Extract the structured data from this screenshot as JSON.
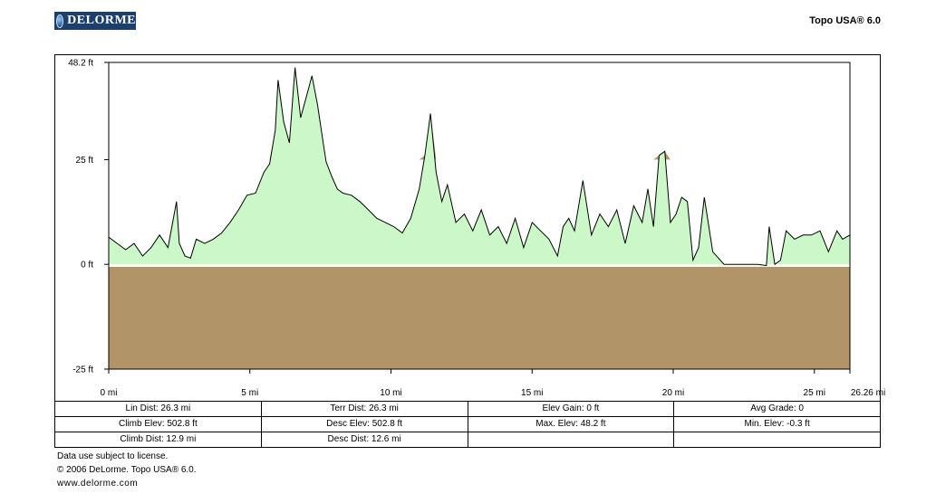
{
  "header": {
    "logo_text": "DELORME",
    "app_title": "Topo USA® 6.0"
  },
  "chart_data": {
    "type": "area",
    "title": "",
    "xlabel": "",
    "ylabel": "",
    "x_unit": "mi",
    "y_unit": "ft",
    "xlim": [
      0,
      26.26
    ],
    "ylim": [
      -25,
      48.2
    ],
    "x_ticks": [
      0,
      5,
      10,
      15,
      20,
      25,
      26.26
    ],
    "x_tick_labels": [
      "0 mi",
      "5 mi",
      "10 mi",
      "15 mi",
      "20 mi",
      "25 mi",
      "26.26 mi"
    ],
    "y_ticks": [
      48.2,
      25,
      0,
      -25
    ],
    "y_tick_labels": [
      "48.2 ft",
      "25 ft",
      "0 ft",
      "-25 ft"
    ],
    "grid": false,
    "legend": "none",
    "colors": {
      "fill": "#ccf7c9",
      "ground": "#b19467",
      "line": "#000000"
    },
    "series": [
      {
        "x": [
          0,
          0.3,
          0.6,
          0.9,
          1.2,
          1.5,
          1.8,
          2.1,
          2.4,
          2.5,
          2.7,
          2.9,
          3.1,
          3.4,
          3.7,
          4.0,
          4.3,
          4.6,
          4.9,
          5.2,
          5.5,
          5.7,
          5.9,
          6.0,
          6.2,
          6.4,
          6.6,
          6.8,
          7.0,
          7.2,
          7.4,
          7.6,
          7.7,
          7.9,
          8.1,
          8.3,
          8.6,
          8.9,
          9.2,
          9.5,
          9.8,
          10.1,
          10.4,
          10.7,
          11.0,
          11.2,
          11.4,
          11.6,
          11.8,
          12.0,
          12.3,
          12.6,
          12.9,
          13.2,
          13.5,
          13.8,
          14.1,
          14.4,
          14.7,
          15.0,
          15.3,
          15.6,
          15.9,
          16.1,
          16.3,
          16.5,
          16.8,
          17.1,
          17.4,
          17.7,
          18.0,
          18.3,
          18.6,
          18.9,
          19.1,
          19.3,
          19.5,
          19.7,
          19.9,
          20.1,
          20.3,
          20.5,
          20.7,
          20.9,
          21.1,
          21.4,
          21.8,
          22.2,
          22.6,
          23.0,
          23.3,
          23.4,
          23.6,
          23.8,
          24.0,
          24.3,
          24.6,
          24.9,
          25.2,
          25.5,
          25.8,
          26.0,
          26.26
        ],
        "y": [
          6.5,
          5.0,
          3.5,
          5.0,
          2.0,
          4.0,
          7.0,
          4.0,
          15.0,
          5.0,
          2.0,
          1.5,
          6.0,
          5.0,
          6.0,
          7.5,
          10.0,
          13.0,
          16.5,
          17.0,
          22.0,
          24.0,
          32.0,
          44.0,
          34.0,
          29.0,
          47.0,
          35.0,
          40.0,
          45.0,
          38.0,
          29.0,
          24.5,
          21.0,
          18.0,
          17.0,
          16.5,
          15.0,
          13.0,
          11.0,
          10.0,
          9.0,
          7.5,
          11.0,
          18.0,
          26.0,
          36.0,
          22.0,
          15.0,
          19.0,
          10.0,
          12.0,
          8.0,
          13.0,
          7.0,
          9.0,
          5.0,
          11.0,
          4.0,
          10.0,
          8.0,
          6.0,
          2.0,
          9.0,
          11.0,
          8.0,
          20.0,
          7.0,
          12.0,
          9.0,
          13.0,
          5.0,
          14.0,
          10.0,
          18.0,
          9.0,
          26.0,
          27.0,
          10.0,
          12.0,
          16.0,
          15.0,
          1.0,
          4.0,
          16.0,
          3.0,
          0.0,
          0.0,
          0.0,
          0.0,
          -0.3,
          9.0,
          0.0,
          1.0,
          8.0,
          6.0,
          7.0,
          7.0,
          8.0,
          3.0,
          8.0,
          6.0,
          7.0
        ]
      }
    ]
  },
  "stats": {
    "rows": [
      [
        "Lin Dist: 26.3 mi",
        "Terr Dist: 26.3 mi",
        "Elev Gain: 0 ft",
        "Avg Grade: 0"
      ],
      [
        "Climb Elev: 502.8 ft",
        "Desc Elev: 502.8 ft",
        "Max. Elev: 48.2 ft",
        "Min. Elev: -0.3 ft"
      ],
      [
        "Climb Dist: 12.9 mi",
        "Desc Dist: 12.6 mi",
        "",
        ""
      ]
    ]
  },
  "footer": {
    "license": "Data use subject to license.",
    "copyright": "© 2006 DeLorme. Topo USA® 6.0.",
    "website": "www.delorme.com"
  }
}
